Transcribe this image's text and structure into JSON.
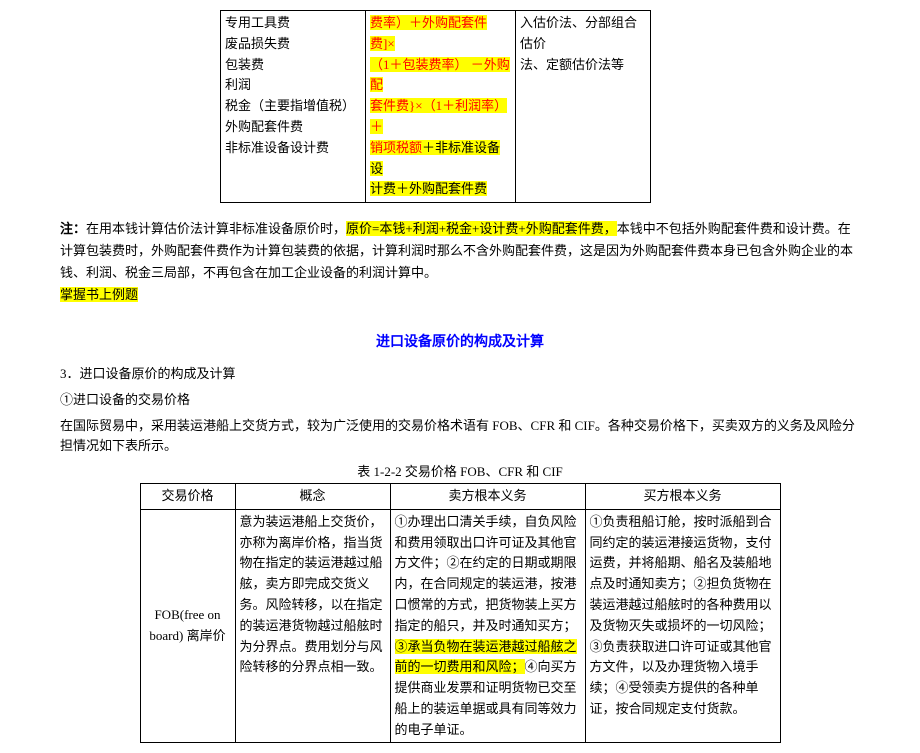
{
  "table1": {
    "col1_lines": [
      "专用工具费",
      "废品损失费",
      "包装费",
      "利润",
      "税金（主要指增值税）",
      "外购配套件费",
      "非标准设备设计费"
    ],
    "col2_red_lines": [
      "费率）＋外购配套件费]×",
      "（1＋包装费率） －外购配",
      "套件费}×（1＋利润率）＋",
      "销项税额"
    ],
    "col2_black_suffix": "＋非标准设备设",
    "col2_last_highlight": "计费＋外购配套件费",
    "col3_lines": [
      "入估价法、分部组合估价",
      "法、定额估价法等"
    ]
  },
  "note": {
    "label": "注：",
    "before_highlight": "在用本钱计算估价法计算非标准设备原价时，",
    "highlight1": "原价=本钱+利润+税金+设计费+外购配套件费，",
    "after_highlight": "本钱中不包括外购配套件费和设计费。在计算包装费时，外购配套件费作为计算包装费的依据，计算利润时那么不含外购配套件费，这是因为外购配套件费本身已包含外购企业的本钱、利润、税金三局部，不再包含在加工企业设备的利润计算中。",
    "highlight2": "掌握书上例题"
  },
  "section_title": "进口设备原价的构成及计算",
  "section3": {
    "line1": "3．进口设备原价的构成及计算",
    "line2": "①进口设备的交易价格",
    "line3": "在国际贸易中，采用装运港船上交货方式，较为广泛使用的交易价格术语有 FOB、CFR 和 CIF。各种交易价格下，买卖双方的义务及风险分担情况如下表所示。"
  },
  "table2": {
    "caption": "表 1-2-2 交易价格 FOB、CFR 和 CIF",
    "headers": [
      "交易价格",
      "概念",
      "卖方根本义务",
      "买方根本义务"
    ],
    "row1": {
      "col1": "FOB(free on board) 离岸价",
      "col2": "意为装运港船上交货价，亦称为离岸价格，指当货物在指定的装运港越过船舷，卖方即完成交货义务。风险转移，以在指定的装运港货物越过船舷时为分界点。费用划分与风险转移的分界点相一致。",
      "col3_before": "①办理出口清关手续，自负风险和费用领取出口许可证及其他官方文件；②在约定的日期或期限内，在合同规定的装运港，按港口惯常的方式，把货物装上买方指定的船只，并及时通知买方；",
      "col3_highlight": "③承当负物在装运港越过船舷之前的一切费用和风险；",
      "col3_after": "④向买方提供商业发票和证明货物已交至船上的装运单据或具有同等效力的电子单证。",
      "col4": "①负责租船订舱，按时派船到合同约定的装运港接运货物，支付运费，并将船期、船名及装船地点及时通知卖方；②担负货物在装运港越过船舷时的各种费用以及货物灭失或损坏的一切风险；③负责获取进口许可证或其他官方文件，以及办理货物入境手续；④受领卖方提供的各种单证，按合同规定支付货款。"
    }
  }
}
